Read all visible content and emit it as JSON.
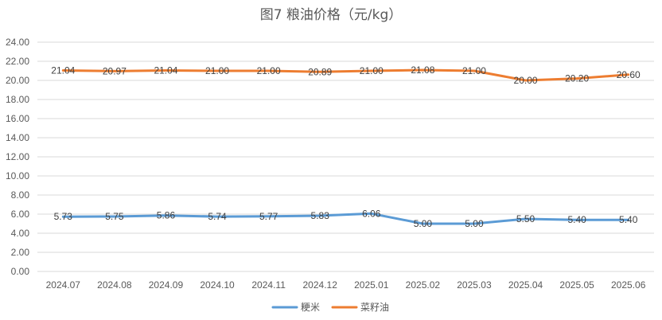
{
  "chart_data": {
    "type": "line",
    "title": "图7  粮油价格（元/kg）",
    "categories": [
      "2024.07",
      "2024.08",
      "2024.09",
      "2024.10",
      "2024.11",
      "2024.12",
      "2025.01",
      "2025.02",
      "2025.03",
      "2025.04",
      "2025.05",
      "2025.06"
    ],
    "ylim": [
      0,
      24
    ],
    "yticks": [
      "0.00",
      "2.00",
      "4.00",
      "6.00",
      "8.00",
      "10.00",
      "12.00",
      "14.00",
      "16.00",
      "18.00",
      "20.00",
      "22.00",
      "24.00"
    ],
    "grid": true,
    "legend_position": "bottom",
    "series": [
      {
        "name": "粳米",
        "color": "#5b9bd5",
        "values": [
          5.73,
          5.75,
          5.86,
          5.74,
          5.77,
          5.83,
          6.06,
          5.0,
          5.0,
          5.5,
          5.4,
          5.4
        ],
        "labels": [
          "5.73",
          "5.75",
          "5.86",
          "5.74",
          "5.77",
          "5.83",
          "6.06",
          "5.00",
          "5.00",
          "5.50",
          "5.40",
          "5.40"
        ]
      },
      {
        "name": "菜籽油",
        "color": "#ed7d31",
        "values": [
          21.04,
          20.97,
          21.04,
          21.0,
          21.0,
          20.89,
          21.0,
          21.08,
          21.0,
          20.0,
          20.2,
          20.6
        ],
        "labels": [
          "21.04",
          "20.97",
          "21.04",
          "21.00",
          "21.00",
          "20.89",
          "21.00",
          "21.08",
          "21.00",
          "20.00",
          "20.20",
          "20.60"
        ]
      }
    ]
  }
}
